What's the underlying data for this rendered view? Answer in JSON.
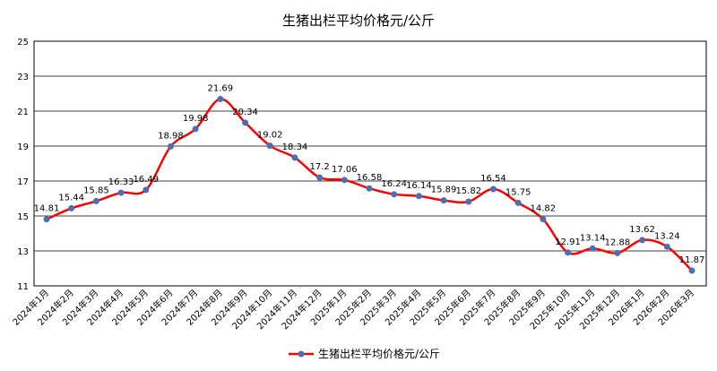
{
  "chart_data": {
    "type": "line",
    "title": "生猪出栏平均价格元/公斤",
    "xlabel": "",
    "ylabel": "",
    "ylim": [
      11,
      25
    ],
    "yticks": [
      11,
      13,
      15,
      17,
      19,
      21,
      23,
      25
    ],
    "grid": true,
    "legend_position": "bottom",
    "categories": [
      "2024年1月",
      "2024年2月",
      "2024年3月",
      "2024年4月",
      "2024年5月",
      "2024年6月",
      "2024年7月",
      "2024年8月",
      "2024年9月",
      "2024年10月",
      "2024年11月",
      "2024年12月",
      "2025年1月",
      "2025年2月",
      "2025年3月",
      "2025年4月",
      "2025年5月",
      "2025年6月",
      "2025年7月",
      "2025年8月",
      "2025年9月",
      "2025年10月",
      "2025年11月",
      "2025年12月",
      "2026年1月",
      "2026年2月",
      "2026年3月"
    ],
    "series": [
      {
        "name": "生猪出栏平均价格元/公斤",
        "values": [
          14.81,
          15.44,
          15.85,
          16.33,
          16.49,
          18.98,
          19.98,
          21.69,
          20.34,
          19.02,
          18.34,
          17.2,
          17.06,
          16.58,
          16.24,
          16.14,
          15.89,
          15.82,
          16.54,
          15.75,
          14.82,
          12.91,
          13.14,
          12.88,
          13.62,
          13.24,
          11.87
        ],
        "line_color": "#ff0000",
        "marker_color": "#4a6fb5"
      }
    ]
  }
}
